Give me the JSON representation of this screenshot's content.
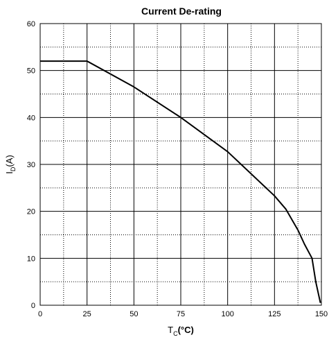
{
  "chart_data": {
    "type": "line",
    "title": "Current De-rating",
    "xlabel": {
      "main": "T",
      "sub": "C",
      "unit": "(°C)"
    },
    "ylabel": {
      "main": "I",
      "sub": "D",
      "unit": "(A)"
    },
    "xlim": [
      0,
      150
    ],
    "ylim": [
      0,
      60
    ],
    "x_ticks": [
      0,
      25,
      50,
      75,
      100,
      125,
      150
    ],
    "y_ticks": [
      0,
      10,
      20,
      30,
      40,
      50,
      60
    ],
    "grid": true,
    "series": [
      {
        "color": "#000000",
        "points": [
          [
            0,
            52
          ],
          [
            25,
            52
          ],
          [
            50,
            46.5
          ],
          [
            75,
            40
          ],
          [
            100,
            32.7
          ],
          [
            112.5,
            28
          ],
          [
            125,
            23.3
          ],
          [
            131,
            20.5
          ],
          [
            137.5,
            16
          ],
          [
            141,
            13
          ],
          [
            145,
            10
          ],
          [
            147,
            5
          ],
          [
            149.5,
            0.5
          ]
        ]
      }
    ]
  }
}
